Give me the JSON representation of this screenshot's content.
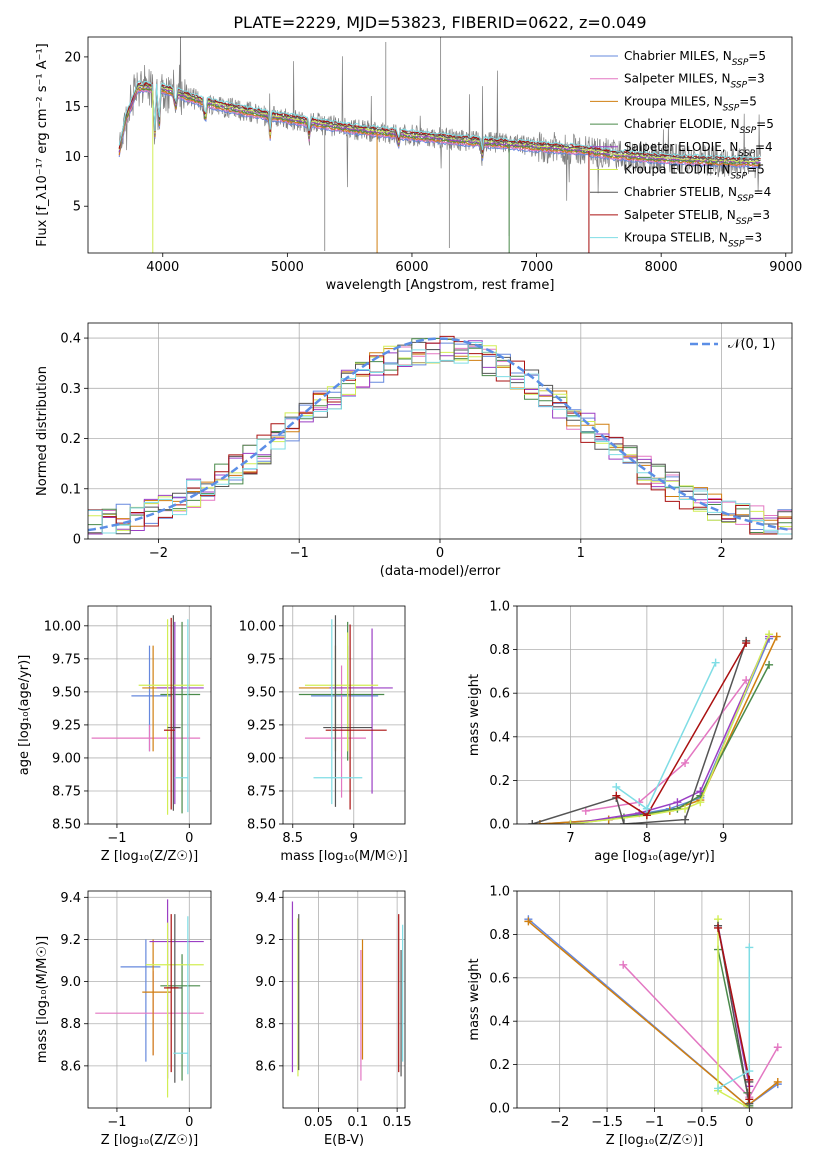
{
  "figure_title": "PLATE=2229, MJD=53823, FIBERID=0622, z=0.049",
  "colors": {
    "Chabrier MILES": "#6688dd",
    "Salpeter MILES": "#e377c2",
    "Kroupa MILES": "#d07f10",
    "Chabrier ELODIE": "#4a8a4a",
    "Salpeter ELODIE": "#9b3fc4",
    "Kroupa ELODIE": "#d2ee55",
    "Chabrier STELIB": "#555555",
    "Salpeter STELIB": "#aa1111",
    "Kroupa STELIB": "#7fdde5",
    "data": "#7f7f7f",
    "gauss": "#5b8ee6"
  },
  "chart_data": [
    {
      "id": "spectrum",
      "type": "line",
      "xlabel": "wavelength [Angstrom, rest frame]",
      "ylabel": "Flux [f_λ10⁻¹⁷ erg cm⁻² s⁻¹ A⁻¹]",
      "xlim": [
        3400,
        9050
      ],
      "ylim": [
        0.3,
        22
      ],
      "xticks": [
        4000,
        5000,
        6000,
        7000,
        8000,
        9000
      ],
      "yticks": [
        5,
        10,
        15,
        20
      ],
      "grid": false,
      "legend_position": "top-right",
      "legend": [
        {
          "name": "Chabrier MILES",
          "nssp": "5"
        },
        {
          "name": "Salpeter MILES",
          "nssp": "3"
        },
        {
          "name": "Kroupa MILES",
          "nssp": "5"
        },
        {
          "name": "Chabrier ELODIE",
          "nssp": "5"
        },
        {
          "name": "Salpeter ELODIE",
          "nssp": "4"
        },
        {
          "name": "Kroupa ELODIE",
          "nssp": "5"
        },
        {
          "name": "Chabrier STELIB",
          "nssp": "4"
        },
        {
          "name": "Salpeter STELIB",
          "nssp": "3"
        },
        {
          "name": "Kroupa STELIB",
          "nssp": "3"
        }
      ],
      "continuum": [
        [
          3650,
          12.0
        ],
        [
          3800,
          17.0
        ],
        [
          4000,
          16.8
        ],
        [
          4300,
          15.6
        ],
        [
          4600,
          14.7
        ],
        [
          5000,
          13.8
        ],
        [
          5500,
          12.8
        ],
        [
          6000,
          12.1
        ],
        [
          6500,
          11.5
        ],
        [
          7000,
          11.0
        ],
        [
          7400,
          10.6
        ],
        [
          7600,
          10.2
        ],
        [
          8000,
          9.8
        ],
        [
          8500,
          9.5
        ],
        [
          8800,
          9.4
        ]
      ]
    },
    {
      "id": "residuals",
      "type": "line",
      "xlabel": "(data-model)/error",
      "ylabel": "Normed distribution",
      "xlim": [
        -2.5,
        2.5
      ],
      "ylim": [
        0,
        0.43
      ],
      "xticks": [
        -2,
        -1,
        0,
        1,
        2
      ],
      "yticks": [
        0.0,
        0.1,
        0.2,
        0.3,
        0.4
      ],
      "grid": true,
      "legend_position": "top-right",
      "gaussian_label": "𝒩(0, 1)"
    },
    {
      "id": "age_vs_Z",
      "type": "scatter",
      "xlabel": "Z [log₁₀(Z/Z☉)]",
      "ylabel": "age  [log₁₀(age/yr)]",
      "xlim": [
        -1.4,
        0.3
      ],
      "ylim": [
        8.5,
        10.15
      ],
      "xticks": [
        -1,
        0
      ],
      "yticks": [
        8.5,
        8.75,
        9.0,
        9.25,
        9.5,
        9.75,
        10.0
      ],
      "grid": true,
      "points": [
        {
          "model": "Chabrier MILES",
          "x": -0.55,
          "xerr": [
            0.25,
            0.3
          ],
          "y": 9.47,
          "yerr": [
            0.42,
            0.38
          ]
        },
        {
          "model": "Salpeter MILES",
          "x": -0.55,
          "xerr": [
            0.8,
            0.7
          ],
          "y": 9.15,
          "yerr": [
            0.1,
            0.1
          ]
        },
        {
          "model": "Kroupa MILES",
          "x": -0.5,
          "xerr": [
            0.15,
            0.25
          ],
          "y": 9.53,
          "yerr": [
            0.48,
            0.32
          ]
        },
        {
          "model": "Chabrier ELODIE",
          "x": -0.1,
          "xerr": [
            0.3,
            0.25
          ],
          "y": 9.48,
          "yerr": [
            0.9,
            0.55
          ]
        },
        {
          "model": "Salpeter ELODIE",
          "x": -0.2,
          "xerr": [
            0.25,
            0.4
          ],
          "y": 9.53,
          "yerr": [
            0.88,
            0.5
          ]
        },
        {
          "model": "Kroupa ELODIE",
          "x": -0.3,
          "xerr": [
            0.4,
            0.5
          ],
          "y": 9.55,
          "yerr": [
            0.98,
            0.5
          ]
        },
        {
          "model": "Chabrier STELIB",
          "x": -0.22,
          "xerr": [
            0.08,
            0.1
          ],
          "y": 9.23,
          "yerr": [
            0.63,
            0.85
          ]
        },
        {
          "model": "Salpeter STELIB",
          "x": -0.25,
          "xerr": [
            0.1,
            0.05
          ],
          "y": 9.21,
          "yerr": [
            0.6,
            0.85
          ]
        },
        {
          "model": "Kroupa STELIB",
          "x": -0.02,
          "xerr": [
            0.18,
            0.0
          ],
          "y": 8.85,
          "yerr": [
            0.26,
            1.2
          ]
        }
      ]
    },
    {
      "id": "age_vs_mass",
      "type": "scatter",
      "xlabel": "mass [log₁₀(M/M☉)]",
      "ylabel": "",
      "xlim": [
        8.42,
        9.42
      ],
      "ylim": [
        8.5,
        10.15
      ],
      "xticks": [
        8.5,
        9.0
      ],
      "yticks": [
        8.5,
        8.75,
        9.0,
        9.25,
        9.5,
        9.75,
        10.0
      ],
      "grid": true,
      "points": [
        {
          "model": "Chabrier MILES",
          "x": 8.95,
          "xerr": [
            0.3,
            0.25
          ],
          "y": 9.47,
          "yerr": [
            0.42,
            0.38
          ]
        },
        {
          "model": "Salpeter MILES",
          "x": 8.9,
          "xerr": [
            0.3,
            0.2
          ],
          "y": 9.15,
          "yerr": [
            0.45,
            0.55
          ]
        },
        {
          "model": "Kroupa MILES",
          "x": 8.85,
          "xerr": [
            0.3,
            0.3
          ],
          "y": 9.53,
          "yerr": [
            0.48,
            0.32
          ]
        },
        {
          "model": "Chabrier ELODIE",
          "x": 8.95,
          "xerr": [
            0.4,
            0.3
          ],
          "y": 9.48,
          "yerr": [
            0.5,
            0.55
          ]
        },
        {
          "model": "Salpeter ELODIE",
          "x": 9.15,
          "xerr": [
            0.35,
            0.17
          ],
          "y": 9.53,
          "yerr": [
            0.8,
            0.45
          ]
        },
        {
          "model": "Kroupa ELODIE",
          "x": 8.95,
          "xerr": [
            0.35,
            0.25
          ],
          "y": 9.55,
          "yerr": [
            0.5,
            0.4
          ]
        },
        {
          "model": "Chabrier STELIB",
          "x": 8.85,
          "xerr": [
            0.1,
            0.3
          ],
          "y": 9.23,
          "yerr": [
            0.6,
            0.85
          ]
        },
        {
          "model": "Salpeter STELIB",
          "x": 8.97,
          "xerr": [
            0.2,
            0.3
          ],
          "y": 9.21,
          "yerr": [
            0.6,
            0.8
          ]
        },
        {
          "model": "Kroupa STELIB",
          "x": 8.82,
          "xerr": [
            0.15,
            0.25
          ],
          "y": 8.85,
          "yerr": [
            0.2,
            1.2
          ]
        }
      ]
    },
    {
      "id": "mass_weight_vs_age",
      "type": "line",
      "xlabel": "age  [log₁₀(age/yr)]",
      "ylabel": "mass weight",
      "xlim": [
        6.3,
        9.9
      ],
      "ylim": [
        0,
        1.0
      ],
      "xticks": [
        7,
        8,
        9
      ],
      "yticks": [
        0.0,
        0.2,
        0.4,
        0.6,
        0.8,
        1.0
      ],
      "grid": true,
      "series": [
        {
          "model": "Chabrier MILES",
          "points": [
            [
              6.6,
              0.0
            ],
            [
              7.5,
              0.02
            ],
            [
              8.3,
              0.07
            ],
            [
              8.7,
              0.12
            ],
            [
              9.6,
              0.85
            ]
          ]
        },
        {
          "model": "Salpeter MILES",
          "points": [
            [
              7.2,
              0.06
            ],
            [
              7.9,
              0.1
            ],
            [
              8.5,
              0.28
            ],
            [
              9.3,
              0.66
            ]
          ]
        },
        {
          "model": "Kroupa MILES",
          "points": [
            [
              6.6,
              0.0
            ],
            [
              7.5,
              0.02
            ],
            [
              8.3,
              0.06
            ],
            [
              8.7,
              0.11
            ],
            [
              9.7,
              0.86
            ]
          ]
        },
        {
          "model": "Chabrier ELODIE",
          "points": [
            [
              7.0,
              0.0
            ],
            [
              7.7,
              0.03
            ],
            [
              8.4,
              0.07
            ],
            [
              8.7,
              0.13
            ],
            [
              9.6,
              0.73
            ]
          ]
        },
        {
          "model": "Salpeter ELODIE",
          "points": [
            [
              7.0,
              0.0
            ],
            [
              7.9,
              0.05
            ],
            [
              8.4,
              0.1
            ],
            [
              8.7,
              0.15
            ],
            [
              9.6,
              0.86
            ]
          ]
        },
        {
          "model": "Kroupa ELODIE",
          "points": [
            [
              7.0,
              0.0
            ],
            [
              8.0,
              0.04
            ],
            [
              8.5,
              0.07
            ],
            [
              8.7,
              0.1
            ],
            [
              9.6,
              0.87
            ]
          ]
        },
        {
          "model": "Chabrier STELIB",
          "points": [
            [
              6.5,
              0.0
            ],
            [
              7.6,
              0.12
            ],
            [
              7.7,
              0.0
            ],
            [
              8.5,
              0.02
            ],
            [
              9.3,
              0.84
            ]
          ]
        },
        {
          "model": "Salpeter STELIB",
          "points": [
            [
              7.6,
              0.13
            ],
            [
              8.0,
              0.04
            ],
            [
              9.3,
              0.83
            ]
          ]
        },
        {
          "model": "Kroupa STELIB",
          "points": [
            [
              7.6,
              0.17
            ],
            [
              8.0,
              0.07
            ],
            [
              8.9,
              0.74
            ]
          ]
        }
      ]
    },
    {
      "id": "mass_vs_Z",
      "type": "scatter",
      "xlabel": "Z [log₁₀(Z/Z☉)]",
      "ylabel": "mass [log₁₀(M/M☉)]",
      "xlim": [
        -1.4,
        0.3
      ],
      "ylim": [
        8.4,
        9.43
      ],
      "xticks": [
        -1,
        0
      ],
      "yticks": [
        8.6,
        8.8,
        9.0,
        9.2,
        9.4
      ],
      "grid": true,
      "points": [
        {
          "model": "Chabrier MILES",
          "x": -0.6,
          "xerr": [
            0.35,
            0.2
          ],
          "y": 9.07,
          "yerr": [
            0.45,
            0.13
          ]
        },
        {
          "model": "Salpeter MILES",
          "x": -0.5,
          "xerr": [
            0.8,
            0.7
          ],
          "y": 8.85,
          "yerr": [
            0.2,
            0.2
          ]
        },
        {
          "model": "Kroupa MILES",
          "x": -0.5,
          "xerr": [
            0.15,
            0.25
          ],
          "y": 8.95,
          "yerr": [
            0.3,
            0.25
          ]
        },
        {
          "model": "Chabrier ELODIE",
          "x": -0.1,
          "xerr": [
            0.3,
            0.25
          ],
          "y": 8.98,
          "yerr": [
            0.45,
            0.15
          ]
        },
        {
          "model": "Salpeter ELODIE",
          "x": -0.3,
          "xerr": [
            0.25,
            0.5
          ],
          "y": 9.19,
          "yerr": [
            0.65,
            0.2
          ]
        },
        {
          "model": "Kroupa ELODIE",
          "x": -0.3,
          "xerr": [
            0.3,
            0.5
          ],
          "y": 9.08,
          "yerr": [
            0.63,
            0.2
          ]
        },
        {
          "model": "Chabrier STELIB",
          "x": -0.2,
          "xerr": [
            0.1,
            0.1
          ],
          "y": 8.97,
          "yerr": [
            0.45,
            0.35
          ]
        },
        {
          "model": "Salpeter STELIB",
          "x": -0.25,
          "xerr": [
            0.1,
            0.1
          ],
          "y": 8.97,
          "yerr": [
            0.4,
            0.35
          ]
        },
        {
          "model": "Kroupa STELIB",
          "x": -0.02,
          "xerr": [
            0.2,
            0.0
          ],
          "y": 8.66,
          "yerr": [
            0.1,
            0.65
          ]
        }
      ]
    },
    {
      "id": "mass_vs_EBV",
      "type": "scatter",
      "xlabel": "E(B-V)",
      "ylabel": "",
      "xlim": [
        0.005,
        0.16
      ],
      "ylim": [
        8.4,
        9.43
      ],
      "xticks": [
        0.05,
        0.1,
        0.15
      ],
      "yticks": [
        8.6,
        8.8,
        9.0,
        9.2,
        9.4
      ],
      "grid": true,
      "points": [
        {
          "model": "Salpeter ELODIE",
          "x": 0.017,
          "y": 8.97,
          "yerr": [
            0.4,
            0.41
          ]
        },
        {
          "model": "Kroupa ELODIE",
          "x": 0.024,
          "y": 8.95,
          "yerr": [
            0.4,
            0.35
          ]
        },
        {
          "model": "Chabrier STELIB",
          "x": 0.025,
          "y": 8.98,
          "yerr": [
            0.4,
            0.34
          ]
        },
        {
          "model": "Salpeter MILES",
          "x": 0.104,
          "y": 8.85,
          "yerr": [
            0.32,
            0.3
          ]
        },
        {
          "model": "Kroupa MILES",
          "x": 0.106,
          "y": 8.9,
          "yerr": [
            0.27,
            0.3
          ]
        },
        {
          "model": "Salpeter STELIB",
          "x": 0.152,
          "y": 8.97,
          "yerr": [
            0.4,
            0.35
          ]
        },
        {
          "model": "Chabrier STELIB",
          "x": 0.155,
          "y": 8.85,
          "yerr": [
            0.3,
            0.3
          ]
        },
        {
          "model": "Kroupa STELIB",
          "x": 0.157,
          "y": 8.92,
          "yerr": [
            0.3,
            0.35
          ]
        }
      ]
    },
    {
      "id": "mass_weight_vs_Z",
      "type": "line",
      "xlabel": "Z [log₁₀(Z/Z☉)]",
      "ylabel": "mass weight",
      "xlim": [
        -2.45,
        0.45
      ],
      "ylim": [
        0,
        1.0
      ],
      "xticks": [
        -2.0,
        -1.5,
        -1.0,
        -0.5,
        0.0
      ],
      "yticks": [
        0.0,
        0.2,
        0.4,
        0.6,
        0.8,
        1.0
      ],
      "grid": true,
      "series": [
        {
          "model": "Chabrier MILES",
          "points": [
            [
              -2.33,
              0.87
            ],
            [
              -0.02,
              0.01
            ],
            [
              0.3,
              0.11
            ]
          ]
        },
        {
          "model": "Salpeter MILES",
          "points": [
            [
              -1.33,
              0.66
            ],
            [
              0.0,
              0.05
            ],
            [
              0.3,
              0.28
            ]
          ]
        },
        {
          "model": "Kroupa MILES",
          "points": [
            [
              -2.33,
              0.86
            ],
            [
              -0.02,
              0.01
            ],
            [
              0.3,
              0.12
            ]
          ]
        },
        {
          "model": "Chabrier ELODIE",
          "points": [
            [
              -0.33,
              0.73
            ],
            [
              -0.02,
              0.07
            ],
            [
              0.0,
              0.01
            ]
          ]
        },
        {
          "model": "Salpeter ELODIE",
          "points": [
            [
              -0.33,
              0.84
            ],
            [
              0.0,
              0.1
            ],
            [
              0.0,
              0.0
            ]
          ]
        },
        {
          "model": "Kroupa ELODIE",
          "points": [
            [
              -0.33,
              0.87
            ],
            [
              -0.33,
              0.08
            ],
            [
              0.0,
              0.0
            ]
          ]
        },
        {
          "model": "Chabrier STELIB",
          "points": [
            [
              -0.33,
              0.84
            ],
            [
              0.0,
              0.02
            ],
            [
              0.0,
              0.12
            ]
          ]
        },
        {
          "model": "Salpeter STELIB",
          "points": [
            [
              -0.33,
              0.83
            ],
            [
              0.0,
              0.13
            ],
            [
              0.0,
              0.04
            ]
          ]
        },
        {
          "model": "Kroupa STELIB",
          "points": [
            [
              -0.33,
              0.09
            ],
            [
              0.0,
              0.17
            ],
            [
              0.0,
              0.74
            ]
          ]
        }
      ]
    }
  ]
}
